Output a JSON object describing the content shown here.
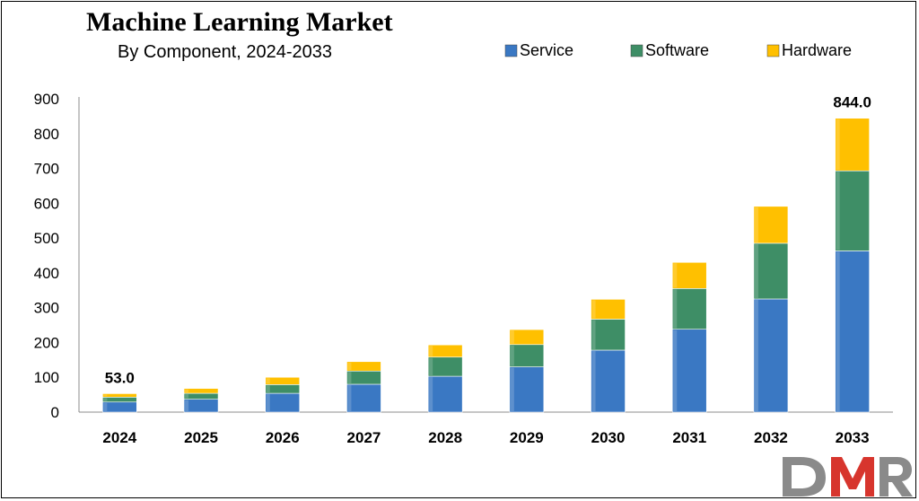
{
  "chart_data": {
    "type": "bar",
    "stacked": true,
    "title": "Machine Learning Market",
    "subtitle": "By Component, 2024-2033",
    "categories": [
      "2024",
      "2025",
      "2026",
      "2027",
      "2028",
      "2029",
      "2030",
      "2031",
      "2032",
      "2033"
    ],
    "series": [
      {
        "name": "Service",
        "color": "#3a78c3",
        "values": [
          29,
          37,
          54,
          80,
          103,
          130,
          178,
          238,
          325,
          463
        ]
      },
      {
        "name": "Software",
        "color": "#3e8e66",
        "values": [
          14,
          17,
          25,
          38,
          55,
          64,
          89,
          117,
          160,
          230
        ]
      },
      {
        "name": "Hardware",
        "color": "#ffc000",
        "values": [
          10,
          14,
          21,
          27,
          35,
          43,
          57,
          75,
          106,
          151
        ]
      }
    ],
    "data_labels": [
      {
        "category": "2024",
        "text": "53.0"
      },
      {
        "category": "2033",
        "text": "844.0"
      }
    ],
    "ylim": [
      0,
      900
    ],
    "yticks": [
      0,
      100,
      200,
      300,
      400,
      500,
      600,
      700,
      800,
      900
    ],
    "grid": false,
    "legend": "top-right",
    "xlabel": "",
    "ylabel": ""
  },
  "logo": {
    "text": "DMR",
    "name": "dmr-logo"
  }
}
